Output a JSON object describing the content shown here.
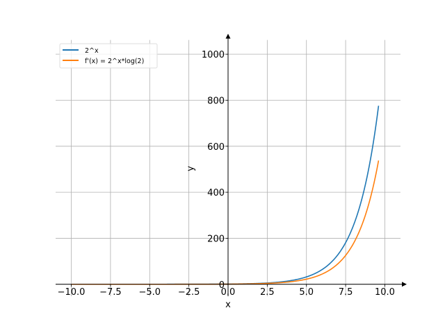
{
  "chart_data": {
    "type": "line",
    "title": "",
    "xlabel": "x",
    "ylabel": "y",
    "xlim": [
      -11,
      11
    ],
    "ylim": [
      -52,
      1062
    ],
    "x_ticks": [
      -10,
      -7.5,
      -5,
      -2.5,
      0,
      2.5,
      5,
      7.5,
      10
    ],
    "x_tick_labels": [
      "−10.0",
      "−7.5",
      "−5.0",
      "−2.5",
      "0.0",
      "2.5",
      "5.0",
      "7.5",
      "10.0"
    ],
    "y_ticks": [
      0,
      200,
      400,
      600,
      800,
      1000
    ],
    "y_tick_labels": [
      "0",
      "200",
      "400",
      "600",
      "800",
      "1000"
    ],
    "grid": true,
    "legend_position": "top-left",
    "x_range": [
      -10,
      9.6
    ],
    "series": [
      {
        "name": "2^x",
        "color": "#1f77b4",
        "function": "2^x"
      },
      {
        "name": "f'(x) = 2^x*log(2)",
        "color": "#ff7f0e",
        "function": "2^x*ln2"
      }
    ]
  }
}
